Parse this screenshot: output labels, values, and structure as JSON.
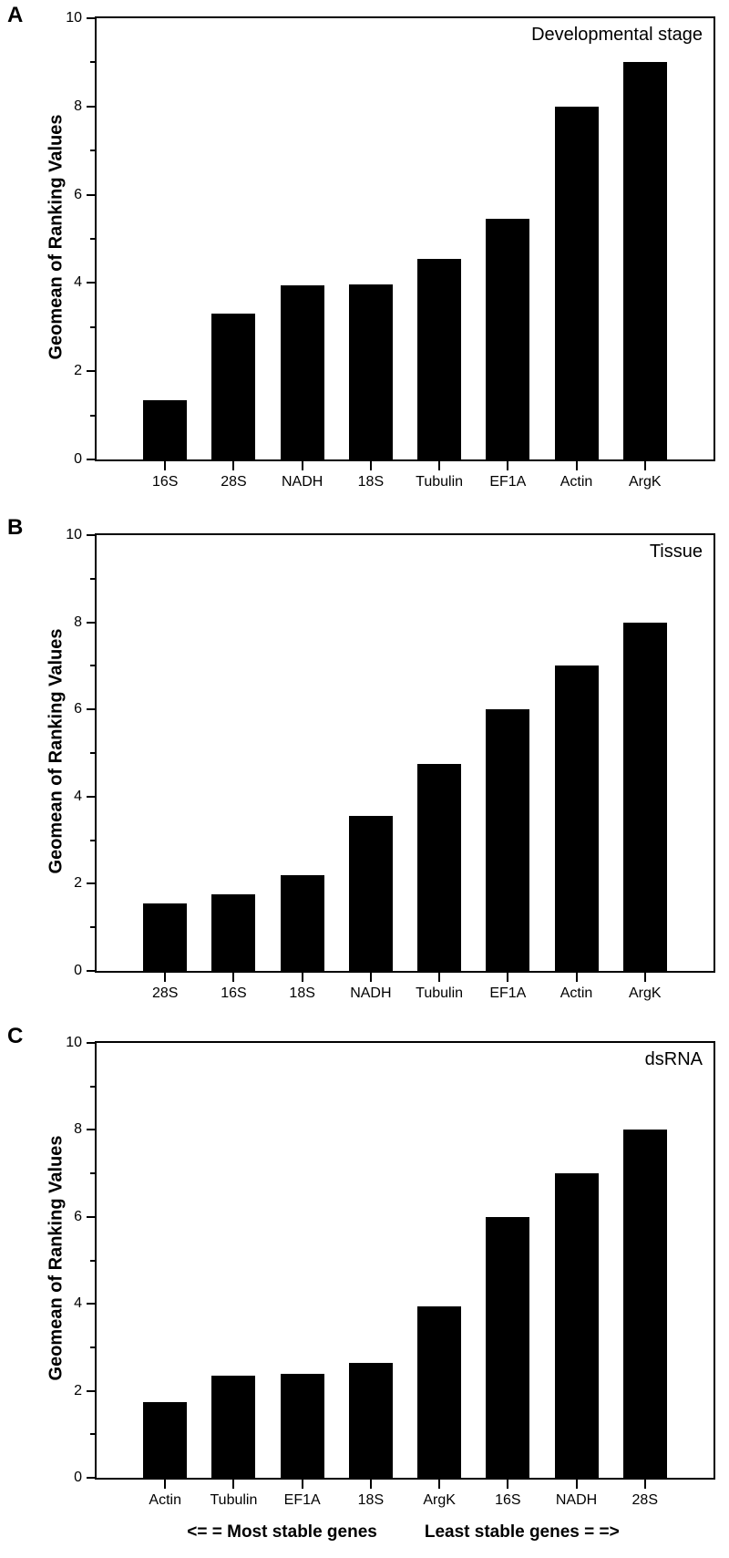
{
  "figure": {
    "background": "#ffffff",
    "axis_color": "#000000"
  },
  "chart_data": [
    {
      "type": "bar",
      "panel_label": "A",
      "title": "Developmental stage",
      "ylabel": "Geomean of Ranking Values",
      "xlabel": "",
      "ylim": [
        0,
        10
      ],
      "yticks": [
        0,
        2,
        4,
        6,
        8,
        10
      ],
      "minor_ytick_step": 1,
      "grid": false,
      "legend": false,
      "bar_color": "#000000",
      "categories": [
        "16S",
        "28S",
        "NADH",
        "18S",
        "Tubulin",
        "EF1A",
        "Actin",
        "ArgK"
      ],
      "values": [
        1.35,
        3.3,
        3.95,
        3.97,
        4.55,
        5.45,
        8.0,
        9.0
      ]
    },
    {
      "type": "bar",
      "panel_label": "B",
      "title": "Tissue",
      "ylabel": "Geomean of Ranking Values",
      "xlabel": "",
      "ylim": [
        0,
        10
      ],
      "yticks": [
        0,
        2,
        4,
        6,
        8,
        10
      ],
      "minor_ytick_step": 1,
      "grid": false,
      "legend": false,
      "bar_color": "#000000",
      "categories": [
        "28S",
        "16S",
        "18S",
        "NADH",
        "Tubulin",
        "EF1A",
        "Actin",
        "ArgK"
      ],
      "values": [
        1.55,
        1.75,
        2.2,
        3.55,
        4.75,
        6.0,
        7.0,
        8.0
      ]
    },
    {
      "type": "bar",
      "panel_label": "C",
      "title": "dsRNA",
      "ylabel": "Geomean of Ranking Values",
      "xlabel": "",
      "ylim": [
        0,
        10
      ],
      "yticks": [
        0,
        2,
        4,
        6,
        8,
        10
      ],
      "minor_ytick_step": 1,
      "grid": false,
      "legend": false,
      "bar_color": "#000000",
      "categories": [
        "Actin",
        "Tubulin",
        "EF1A",
        "18S",
        "ArgK",
        "16S",
        "NADH",
        "28S"
      ],
      "values": [
        1.75,
        2.35,
        2.4,
        2.65,
        3.95,
        6.0,
        7.0,
        8.0
      ]
    }
  ],
  "footer": {
    "most_stable": "<= = Most stable genes",
    "least_stable": "Least stable genes = =>"
  }
}
